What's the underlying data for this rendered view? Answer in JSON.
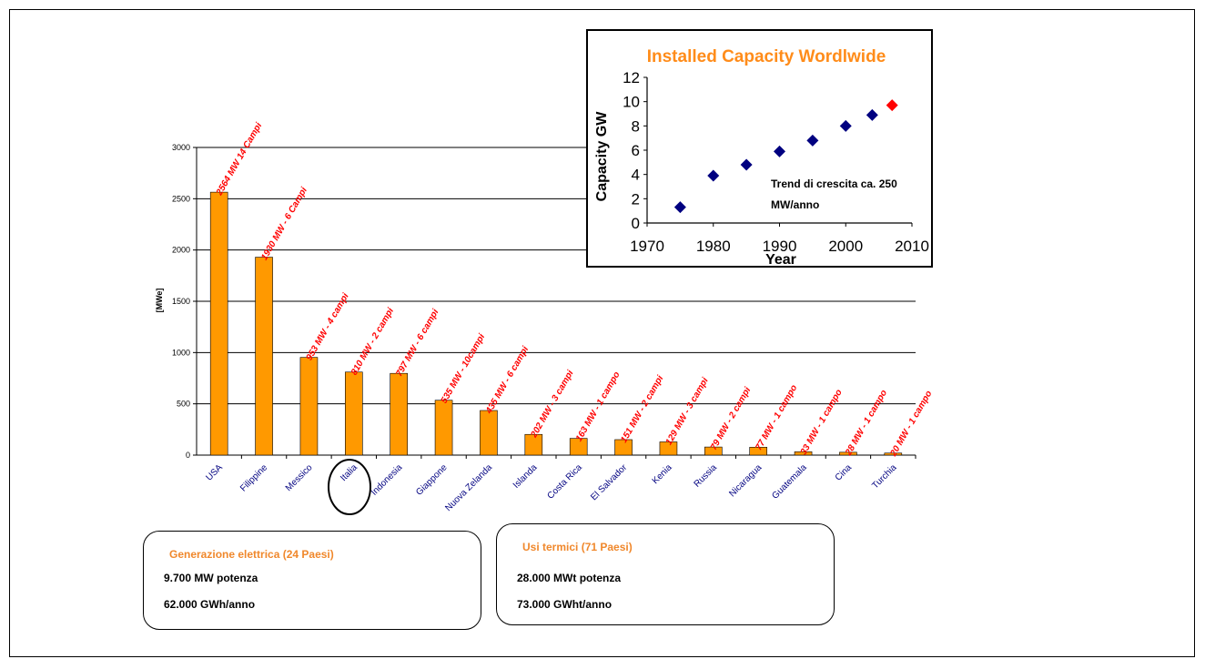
{
  "colors": {
    "bar": "#FF9900",
    "bar_label": "#FF0000",
    "category_label": "#000080",
    "inset_title": "#FF8C1A",
    "inset_point": "#000080",
    "inset_highlight": "#FF0000",
    "box_title": "#F0882C"
  },
  "chart_data": [
    {
      "type": "bar",
      "ylabel": "[MWe]",
      "ylim": [
        0,
        3000
      ],
      "yticks": [
        0,
        500,
        1000,
        1500,
        2000,
        2500,
        3000
      ],
      "grid": true,
      "categories": [
        "USA",
        "Filippine",
        "Messico",
        "Italia",
        "Indonesia",
        "Giappone",
        "Nuova Zelanda",
        "Islanda",
        "Costa Rica",
        "El Salvador",
        "Kenia",
        "Russia",
        "Nicaragua",
        "Guatemala",
        "Cina",
        "Turchia"
      ],
      "values": [
        2564,
        1930,
        953,
        810,
        797,
        535,
        435,
        202,
        163,
        151,
        129,
        79,
        77,
        33,
        28,
        20
      ],
      "data_labels": [
        "2564 MW 14 Campi",
        "1930 MW - 6 Campi",
        "953 MW - 4 campi",
        "810 MW - 2 campi",
        "797 MW - 6 campi",
        "535 MW - 10campi",
        "435 MW - 6 campi",
        "202 MW - 3 campi",
        "163 MW - 1 campo",
        "151 MW - 2 campi",
        "129 MW - 3 campi",
        "79 MW - 2 campi",
        "77 MW - 1 campo",
        "33 MW - 1 campo",
        "28 MW - 1 campo",
        "20 MW - 1 campo"
      ],
      "highlighted_category": "Italia"
    },
    {
      "type": "scatter",
      "title": "Installed Capacity Wordlwide",
      "xlabel": "Year",
      "ylabel": "Capacity GW",
      "xlim": [
        1970,
        2010
      ],
      "ylim": [
        0,
        12
      ],
      "xticks": [
        1970,
        1980,
        1990,
        2000,
        2010
      ],
      "yticks": [
        0,
        2,
        4,
        6,
        8,
        10,
        12
      ],
      "x": [
        1975,
        1980,
        1985,
        1990,
        1995,
        2000,
        2004,
        2007
      ],
      "y": [
        1.3,
        3.9,
        4.8,
        5.9,
        6.8,
        8.0,
        8.9,
        9.7
      ],
      "highlight_index": 7,
      "annotation": [
        "Trend di crescita ca. 250",
        "MW/anno"
      ]
    }
  ],
  "boxes": [
    {
      "title": "Generazione elettrica (24 Paesi)",
      "line1": "9.700 MW potenza",
      "line2": "62.000 GWh/anno"
    },
    {
      "title": "Usi termici (71 Paesi)",
      "line1": "28.000 MWt potenza",
      "line2": "73.000 GWht/anno"
    }
  ]
}
